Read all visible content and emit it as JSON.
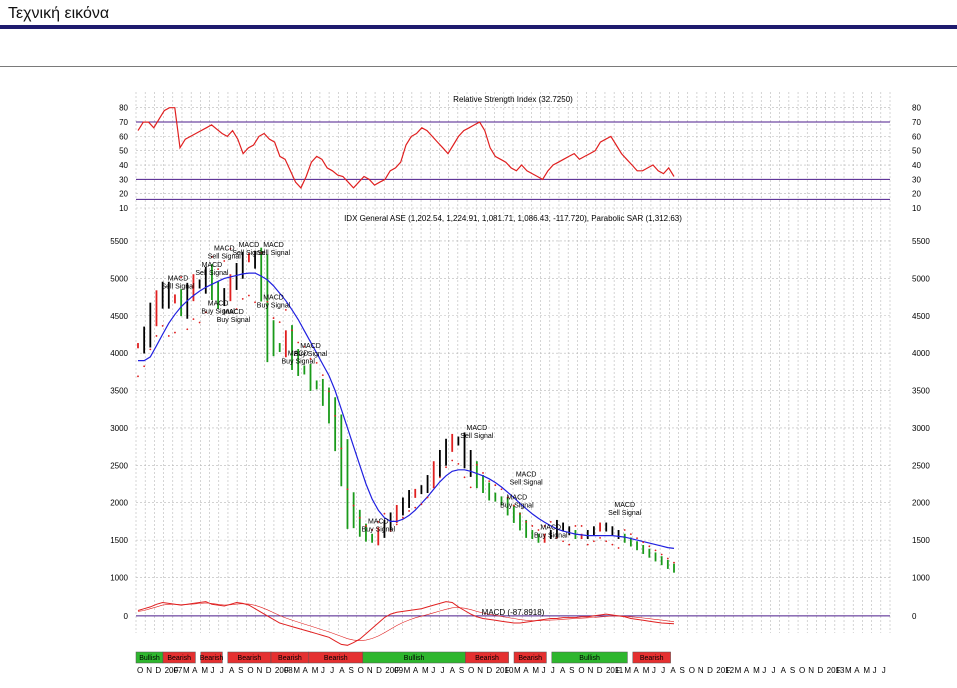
{
  "page": {
    "title": "Τεχνική εικόνα"
  },
  "chart_data": {
    "type": "line",
    "colors": {
      "rsi": "#e02020",
      "price_up": "#e02020",
      "price_down": "#000000",
      "price_trend_down": "#1a9a1a",
      "ma": "#2020e0",
      "sar": "#e02020",
      "macd": "#e02020",
      "grid": "#b8b8b8",
      "ref_line": "#4b1b8b"
    },
    "rsi": {
      "title": "Relative Strength Index (32.7250)",
      "y_ticks": [
        80,
        70,
        60,
        50,
        40,
        30,
        20,
        10
      ],
      "ylim": [
        10,
        84
      ],
      "levels": [
        70,
        30,
        16
      ],
      "values": [
        64,
        70,
        70,
        66,
        72,
        78,
        80,
        80,
        52,
        58,
        60,
        62,
        64,
        66,
        68,
        65,
        62,
        60,
        64,
        58,
        48,
        52,
        54,
        60,
        62,
        58,
        56,
        46,
        44,
        36,
        28,
        24,
        32,
        42,
        46,
        44,
        38,
        36,
        33,
        32,
        28,
        24,
        28,
        32,
        30,
        26,
        28,
        30,
        36,
        38,
        42,
        54,
        60,
        62,
        66,
        64,
        60,
        56,
        52,
        48,
        54,
        60,
        64,
        66,
        68,
        70,
        64,
        52,
        46,
        44,
        42,
        38,
        36,
        40,
        36,
        34,
        32,
        30,
        36,
        40,
        42,
        44,
        46,
        48,
        44,
        46,
        48,
        50,
        56,
        58,
        60,
        54,
        48,
        44,
        40,
        36,
        36,
        38,
        40,
        36,
        34,
        38,
        32
      ]
    },
    "price": {
      "title": "IDX General ASE (1,202.54, 1,224.91, 1,081.71, 1,086.43, -117.720), Parabolic SAR (1,312.63)",
      "y_ticks": [
        5500,
        5000,
        4500,
        4000,
        3500,
        3000,
        2500,
        2000,
        1500,
        1000
      ],
      "ylim": [
        900,
        5700
      ],
      "close": [
        4100,
        4250,
        4500,
        4700,
        4850,
        4700,
        4750,
        4600,
        4800,
        4950,
        4900,
        5050,
        4850,
        4700,
        4800,
        4950,
        5100,
        5250,
        5300,
        5200,
        4900,
        4300,
        4100,
        4050,
        4200,
        3950,
        3800,
        3750,
        3600,
        3550,
        3400,
        3200,
        2900,
        2500,
        2000,
        1800,
        1650,
        1550,
        1500,
        1600,
        1700,
        1800,
        1900,
        2000,
        2100,
        2150,
        2200,
        2300,
        2450,
        2600,
        2750,
        2850,
        2800,
        2600,
        2450,
        2300,
        2200,
        2100,
        2050,
        2000,
        1900,
        1800,
        1700,
        1600,
        1550,
        1500,
        1550,
        1600,
        1700,
        1650,
        1600,
        1550,
        1550,
        1600,
        1650,
        1700,
        1650,
        1600,
        1550,
        1500,
        1450,
        1400,
        1350,
        1300,
        1250,
        1200,
        1150,
        1100
      ],
      "ma": [
        3900,
        3900,
        3950,
        4100,
        4250,
        4400,
        4520,
        4620,
        4700,
        4770,
        4830,
        4880,
        4920,
        4960,
        5000,
        5020,
        5040,
        5060,
        5070,
        5070,
        5030,
        4980,
        4900,
        4800,
        4700,
        4580,
        4450,
        4300,
        4150,
        4000,
        3850,
        3700,
        3500,
        3250,
        3000,
        2750,
        2500,
        2250,
        2050,
        1900,
        1800,
        1750,
        1750,
        1780,
        1830,
        1900,
        1990,
        2080,
        2180,
        2280,
        2360,
        2420,
        2440,
        2440,
        2420,
        2390,
        2360,
        2320,
        2270,
        2210,
        2140,
        2070,
        1990,
        1920,
        1850,
        1790,
        1740,
        1690,
        1650,
        1620,
        1600,
        1580,
        1570,
        1560,
        1560,
        1560,
        1560,
        1560,
        1550,
        1540,
        1520,
        1500,
        1480,
        1460,
        1440,
        1420,
        1400,
        1390
      ],
      "annotations": [
        {
          "text": "MACD Sell Signal",
          "x": 6.5,
          "y": 4850
        },
        {
          "text": "MACD Sell Signal",
          "x": 12,
          "y": 5030
        },
        {
          "text": "MACD Sell Signal",
          "x": 14,
          "y": 5250
        },
        {
          "text": "MACD Sell Signal",
          "x": 18,
          "y": 5300
        },
        {
          "text": "MACD Sell Signal",
          "x": 22,
          "y": 5300
        },
        {
          "text": "MACD Buy Signal",
          "x": 13,
          "y": 4520
        },
        {
          "text": "MACD Buy Signal",
          "x": 15.5,
          "y": 4400
        },
        {
          "text": "MACD Buy Signal",
          "x": 22,
          "y": 4600
        },
        {
          "text": "MACD Buy Signal",
          "x": 26,
          "y": 3850
        },
        {
          "text": "MACD Buy Signal",
          "x": 28,
          "y": 3950
        },
        {
          "text": "MACD Buy Signal",
          "x": 39,
          "y": 1600
        },
        {
          "text": "MACD Sell Signal",
          "x": 55,
          "y": 2850
        },
        {
          "text": "MACD Sell Signal",
          "x": 63,
          "y": 2230
        },
        {
          "text": "MACD Buy Signal",
          "x": 61.5,
          "y": 1920
        },
        {
          "text": "MACD Buy Signal",
          "x": 67,
          "y": 1520
        },
        {
          "text": "MACD Sell Signal",
          "x": 79,
          "y": 1820
        }
      ]
    },
    "macd": {
      "title": "MACD (-87.8918)",
      "y_ticks": [
        0
      ],
      "ylim": [
        -360,
        200
      ],
      "macd": [
        60,
        80,
        100,
        130,
        150,
        140,
        130,
        120,
        130,
        140,
        150,
        160,
        130,
        120,
        110,
        130,
        150,
        140,
        120,
        80,
        40,
        0,
        -40,
        -80,
        -100,
        -120,
        -140,
        -160,
        -180,
        -200,
        -220,
        -240,
        -280,
        -320,
        -330,
        -300,
        -260,
        -200,
        -140,
        -80,
        -20,
        20,
        40,
        50,
        60,
        70,
        80,
        100,
        120,
        140,
        160,
        150,
        100,
        60,
        20,
        -10,
        -30,
        -40,
        -50,
        -60,
        -70,
        -80,
        -80,
        -70,
        -60,
        -50,
        -40,
        -30,
        -30,
        -20,
        -20,
        -20,
        -10,
        -10,
        0,
        10,
        20,
        10,
        0,
        -10,
        -30,
        -40,
        -50,
        -60,
        -70,
        -80,
        -85,
        -88
      ],
      "signal": [
        50,
        60,
        80,
        100,
        120,
        130,
        130,
        125,
        128,
        132,
        138,
        145,
        140,
        130,
        122,
        124,
        132,
        136,
        132,
        118,
        96,
        68,
        36,
        4,
        -24,
        -48,
        -70,
        -92,
        -114,
        -136,
        -158,
        -180,
        -204,
        -230,
        -256,
        -272,
        -278,
        -272,
        -254,
        -226,
        -190,
        -148,
        -108,
        -74,
        -46,
        -22,
        -4,
        14,
        34,
        54,
        74,
        90,
        94,
        86,
        70,
        50,
        32,
        18,
        6,
        -6,
        -18,
        -30,
        -42,
        -50,
        -54,
        -54,
        -52,
        -48,
        -44,
        -38,
        -34,
        -30,
        -26,
        -22,
        -18,
        -12,
        -6,
        -2,
        -2,
        -4,
        -10,
        -16,
        -24,
        -32,
        -40,
        -48,
        -56,
        -64
      ]
    },
    "phases": [
      {
        "label": "Bullish",
        "color": "#2eb62e",
        "from": 0,
        "to": 5
      },
      {
        "label": "Bearish",
        "color": "#e53030",
        "from": 5,
        "to": 11
      },
      {
        "label": "Bearish",
        "color": "#e53030",
        "from": 12,
        "to": 16
      },
      {
        "label": "Bearish",
        "color": "#e53030",
        "from": 17,
        "to": 25
      },
      {
        "label": "Bearish",
        "color": "#e53030",
        "from": 25,
        "to": 32
      },
      {
        "label": "Bearish",
        "color": "#e53030",
        "from": 32,
        "to": 42
      },
      {
        "label": "Bullish",
        "color": "#2eb62e",
        "from": 42,
        "to": 61
      },
      {
        "label": "Bearish",
        "color": "#e53030",
        "from": 61,
        "to": 69
      },
      {
        "label": "Bearish",
        "color": "#e53030",
        "from": 70,
        "to": 76
      },
      {
        "label": "Bullish",
        "color": "#2eb62e",
        "from": 77,
        "to": 91
      },
      {
        "label": "Bearish",
        "color": "#e53030",
        "from": 92,
        "to": 99
      }
    ],
    "x_axis_labels": [
      "O",
      "N",
      "D",
      "2007",
      "F",
      "M",
      "A",
      "M",
      "J",
      "J",
      "A",
      "S",
      "O",
      "N",
      "D",
      "2008",
      "F",
      "M",
      "A",
      "M",
      "J",
      "J",
      "A",
      "S",
      "O",
      "N",
      "D",
      "2009",
      "F",
      "M",
      "A",
      "M",
      "J",
      "J",
      "A",
      "S",
      "O",
      "N",
      "D",
      "2010",
      "F",
      "M",
      "A",
      "M",
      "J",
      "J",
      "A",
      "S",
      "O",
      "N",
      "D",
      "2011",
      "F",
      "M",
      "A",
      "M",
      "J",
      "J",
      "A",
      "S",
      "O",
      "N",
      "D",
      "2012",
      "F",
      "M",
      "A",
      "M",
      "J",
      "J",
      "A",
      "S",
      "O",
      "N",
      "D",
      "2013",
      "F",
      "M",
      "A",
      "M",
      "J",
      "J"
    ]
  }
}
